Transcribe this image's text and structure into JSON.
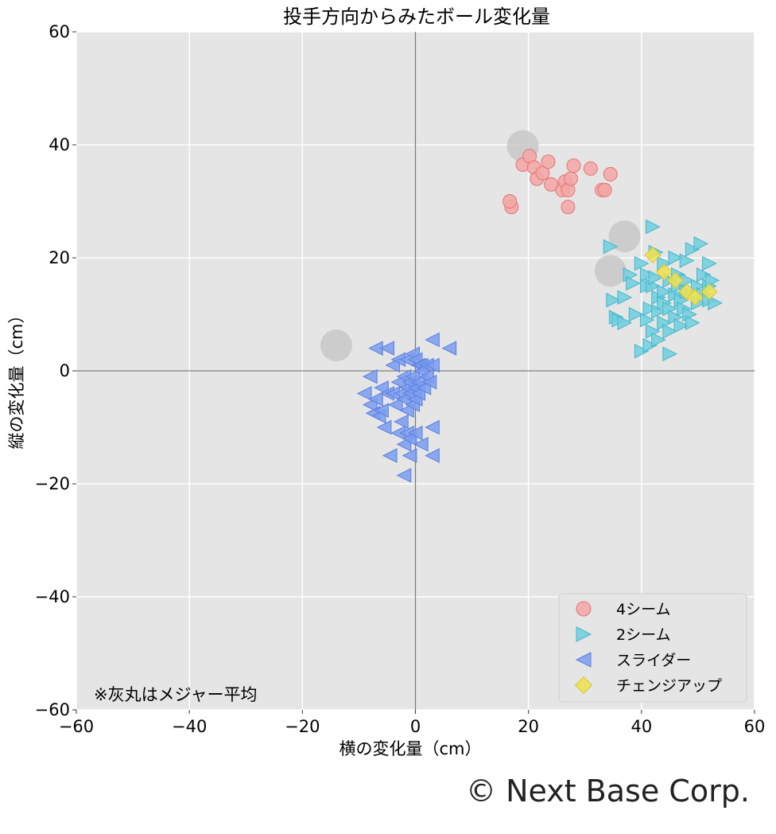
{
  "chart_data": {
    "type": "scatter",
    "title": "投手方向からみたボール変化量",
    "xlabel": "横の変化量（cm）",
    "ylabel": "縦の変化量（cm）",
    "xlim": [
      -60,
      60
    ],
    "ylim": [
      -60,
      60
    ],
    "xticks": [
      -60,
      -40,
      -20,
      0,
      20,
      40,
      60
    ],
    "yticks": [
      -60,
      -40,
      -20,
      0,
      20,
      40,
      60
    ],
    "grid": true,
    "legend_position": "bottom-right",
    "note": "※灰丸はメジャー平均",
    "series": [
      {
        "name": "4シーム",
        "marker": "circle",
        "color": "#f4a6a6",
        "edge": "#e57373",
        "points": [
          [
            17,
            29
          ],
          [
            16.7,
            30
          ],
          [
            19,
            36.5
          ],
          [
            20.2,
            38
          ],
          [
            21,
            36
          ],
          [
            21.5,
            34
          ],
          [
            22.5,
            35
          ],
          [
            23.5,
            37
          ],
          [
            24,
            33
          ],
          [
            26,
            32
          ],
          [
            26.5,
            33.5
          ],
          [
            27,
            29
          ],
          [
            27,
            32
          ],
          [
            27.5,
            34
          ],
          [
            28,
            36.3
          ],
          [
            31,
            35.8
          ],
          [
            33,
            32
          ],
          [
            33.5,
            32
          ],
          [
            34.5,
            34.8
          ]
        ]
      },
      {
        "name": "2シーム",
        "marker": "triangle-right",
        "color": "#6fcfdf",
        "edge": "#45b6c8",
        "points": [
          [
            34.5,
            22
          ],
          [
            35,
            12.5
          ],
          [
            35.5,
            9.5
          ],
          [
            36,
            9
          ],
          [
            37,
            8.5
          ],
          [
            37,
            13
          ],
          [
            38,
            17
          ],
          [
            38.5,
            15.5
          ],
          [
            39,
            10
          ],
          [
            40,
            3.5
          ],
          [
            40,
            19
          ],
          [
            41,
            17
          ],
          [
            41,
            15
          ],
          [
            41,
            9
          ],
          [
            41.5,
            11
          ],
          [
            41.5,
            4.5
          ],
          [
            42,
            25.5
          ],
          [
            42,
            15
          ],
          [
            42,
            7
          ],
          [
            42.5,
            16.5
          ],
          [
            42.5,
            21
          ],
          [
            43,
            13
          ],
          [
            43,
            10.5
          ],
          [
            43,
            5.5
          ],
          [
            44,
            14
          ],
          [
            44,
            19
          ],
          [
            44,
            12
          ],
          [
            44,
            8.5
          ],
          [
            45,
            16
          ],
          [
            45,
            11
          ],
          [
            45,
            7
          ],
          [
            45,
            3
          ],
          [
            46,
            20
          ],
          [
            46,
            13.5
          ],
          [
            46,
            9.5
          ],
          [
            46.5,
            17
          ],
          [
            46.5,
            15
          ],
          [
            47,
            12.5
          ],
          [
            47,
            8
          ],
          [
            47.5,
            11
          ],
          [
            48,
            19.5
          ],
          [
            48,
            16
          ],
          [
            48,
            14
          ],
          [
            48.5,
            10
          ],
          [
            49,
            21.5
          ],
          [
            49,
            8.5
          ],
          [
            50,
            15
          ],
          [
            50,
            12
          ],
          [
            50.5,
            22.5
          ],
          [
            51,
            17
          ],
          [
            51,
            13.5
          ],
          [
            52,
            19
          ],
          [
            52,
            15
          ],
          [
            52,
            12.5
          ],
          [
            52.5,
            16
          ],
          [
            53,
            12
          ]
        ]
      },
      {
        "name": "スライダー",
        "marker": "triangle-left",
        "color": "#7b9cf0",
        "edge": "#5a7fe0",
        "points": [
          [
            -9,
            -4
          ],
          [
            -8,
            -1
          ],
          [
            -8,
            -6
          ],
          [
            -7.5,
            -7.5
          ],
          [
            -7,
            4
          ],
          [
            -7,
            -5
          ],
          [
            -6.5,
            -8
          ],
          [
            -6,
            -3
          ],
          [
            -6,
            -7
          ],
          [
            -5.5,
            -10
          ],
          [
            -5,
            4
          ],
          [
            -5,
            -4
          ],
          [
            -4.5,
            -15
          ],
          [
            -4,
            1
          ],
          [
            -4,
            -4
          ],
          [
            -3.5,
            -6
          ],
          [
            -3,
            2
          ],
          [
            -3,
            -2
          ],
          [
            -3,
            -11
          ],
          [
            -2.5,
            -4
          ],
          [
            -2.5,
            -9
          ],
          [
            -2,
            -1
          ],
          [
            -2,
            -5
          ],
          [
            -2,
            -13
          ],
          [
            -2,
            -18.5
          ],
          [
            -1.5,
            2
          ],
          [
            -1.5,
            -3
          ],
          [
            -1.5,
            -7
          ],
          [
            -1.5,
            -11
          ],
          [
            -1,
            -2
          ],
          [
            -1,
            -4
          ],
          [
            -1,
            -12
          ],
          [
            -1,
            -15
          ],
          [
            -0.5,
            3
          ],
          [
            -0.5,
            -1
          ],
          [
            -0.5,
            -6
          ],
          [
            0,
            2
          ],
          [
            0,
            -3
          ],
          [
            0,
            -5
          ],
          [
            0,
            -11
          ],
          [
            0.5,
            1
          ],
          [
            0.5,
            -2
          ],
          [
            0.5,
            -4
          ],
          [
            1,
            1
          ],
          [
            1,
            0
          ],
          [
            1,
            -13
          ],
          [
            1.5,
            -3
          ],
          [
            2,
            1
          ],
          [
            2,
            -1
          ],
          [
            2.5,
            -2
          ],
          [
            3,
            5.5
          ],
          [
            3,
            1
          ],
          [
            3,
            -10
          ],
          [
            3,
            -15
          ],
          [
            6,
            4
          ]
        ]
      },
      {
        "name": "チェンジアップ",
        "marker": "diamond",
        "color": "#f0e24e",
        "edge": "#d8c630",
        "points": [
          [
            42,
            20.5
          ],
          [
            44,
            17.5
          ],
          [
            46,
            16
          ],
          [
            48,
            14
          ],
          [
            49.5,
            13
          ],
          [
            52,
            14
          ]
        ]
      }
    ],
    "league_averages": [
      [
        19,
        39.8
      ],
      [
        37,
        23.8
      ],
      [
        34.5,
        17.7
      ],
      [
        -14,
        4.5
      ]
    ]
  },
  "copyright": "© Next Base Corp."
}
